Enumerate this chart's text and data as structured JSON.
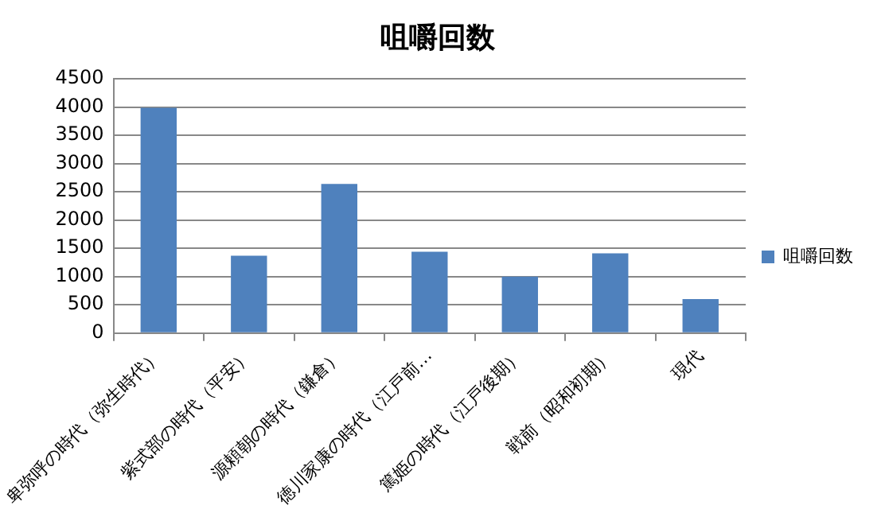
{
  "chart_data": {
    "type": "bar",
    "title": "咀嚼回数",
    "categories": [
      "卑弥呼の時代（弥生時代）",
      "紫式部の時代（平安）",
      "源頼朝の時代（鎌倉）",
      "徳川家康の時代（江戸前…",
      "篤姫の時代（江戸後期）",
      "戦前（昭和初期）",
      "現代"
    ],
    "series": [
      {
        "name": "咀嚼回数",
        "color": "#4f81bd",
        "values": [
          3990,
          1370,
          2640,
          1440,
          1000,
          1410,
          600
        ]
      }
    ],
    "ylim": [
      0,
      4500
    ],
    "yticks": [
      0,
      500,
      1000,
      1500,
      2000,
      2500,
      3000,
      3500,
      4000,
      4500
    ],
    "grid": "y",
    "legend": "right"
  }
}
